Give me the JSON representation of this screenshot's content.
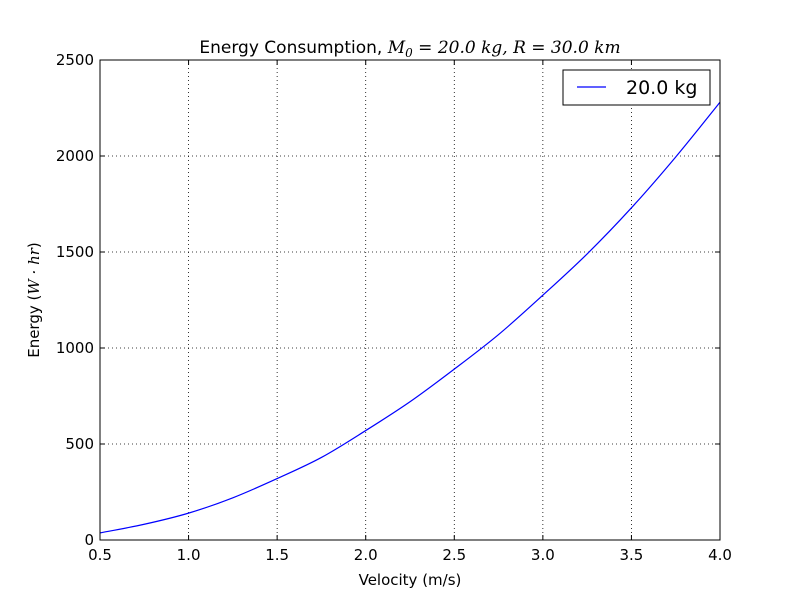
{
  "chart_data": {
    "type": "line",
    "title": {
      "prefix": "Energy Consumption, ",
      "math_mass": "M",
      "math_mass_sub": "0",
      "math_mass_value": " = 20.0 kg,",
      "math_range": " R = 30.0 km"
    },
    "xlabel": "Velocity (m/s)",
    "ylabel": {
      "prefix": "Energy (",
      "math": "W · hr",
      "suffix": ")"
    },
    "xlim": [
      0.5,
      4.0
    ],
    "ylim": [
      0,
      2500
    ],
    "x_ticks": [
      "0.5",
      "1.0",
      "1.5",
      "2.0",
      "2.5",
      "3.0",
      "3.5",
      "4.0"
    ],
    "y_ticks": [
      "0",
      "500",
      "1000",
      "1500",
      "2000",
      "2500"
    ],
    "grid": true,
    "legend_position": "top-right",
    "series": [
      {
        "name": "20.0 kg",
        "color": "#0000ff",
        "x": [
          0.5,
          0.75,
          1.0,
          1.25,
          1.5,
          1.75,
          2.0,
          2.25,
          2.5,
          2.75,
          3.0,
          3.25,
          3.5,
          3.75,
          4.0
        ],
        "y": [
          37,
          82,
          140,
          220,
          320,
          430,
          570,
          720,
          890,
          1070,
          1275,
          1490,
          1730,
          1995,
          2280
        ]
      }
    ]
  }
}
